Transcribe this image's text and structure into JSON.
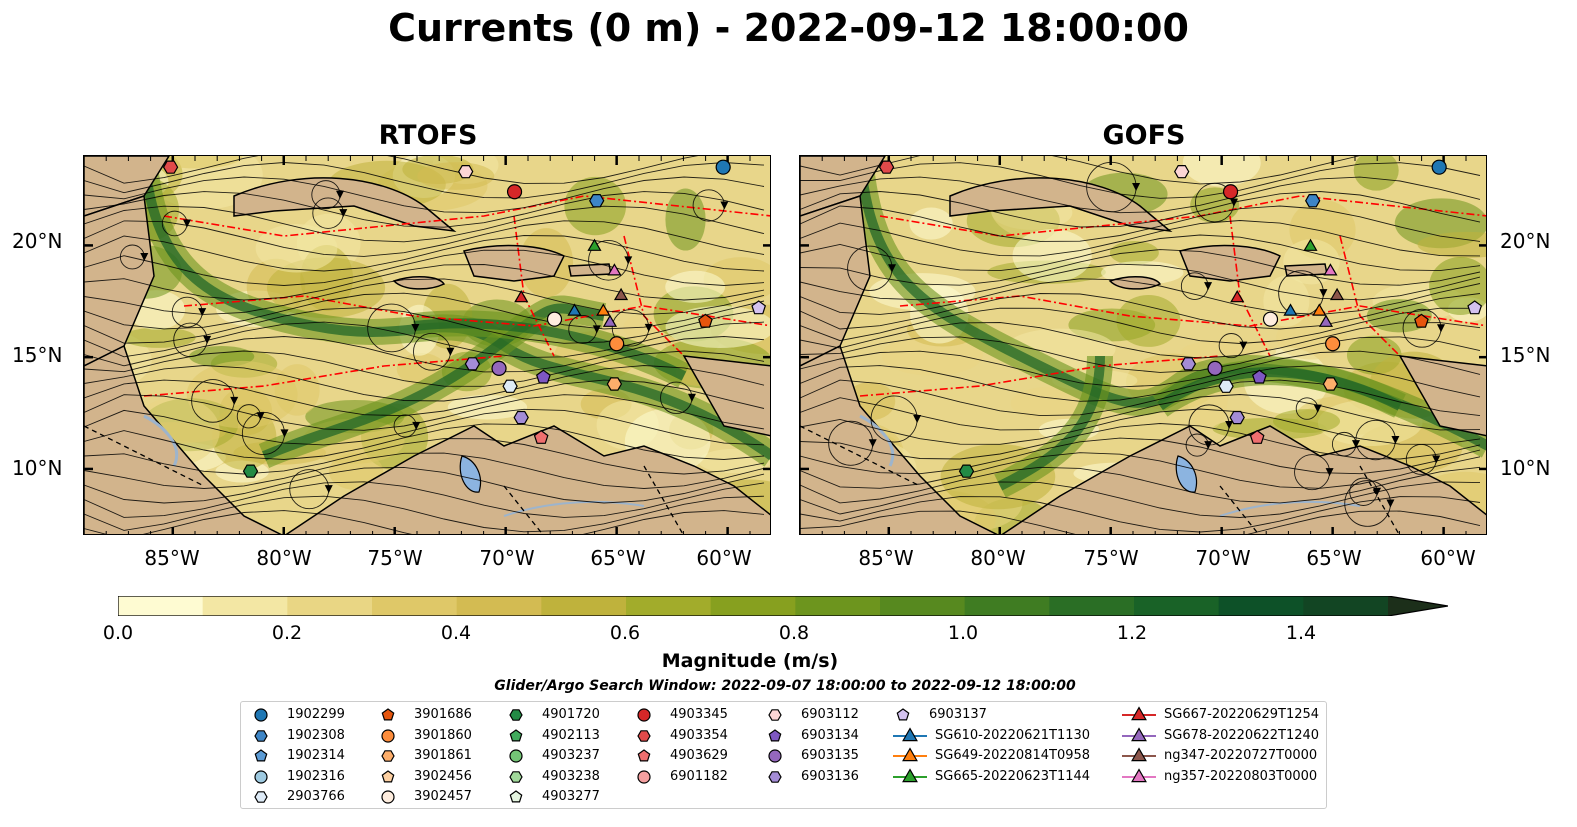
{
  "title": "Currents (0 m) - 2022-09-12 18:00:00",
  "panels": [
    {
      "title": "RTOFS"
    },
    {
      "title": "GOFS"
    }
  ],
  "lat_labels": [
    "20°N",
    "15°N",
    "10°N"
  ],
  "lon_labels": [
    "85°W",
    "80°W",
    "75°W",
    "70°W",
    "65°W",
    "60°W"
  ],
  "colorbar": {
    "label": "Magnitude (m/s)",
    "ticks": [
      "0.0",
      "0.2",
      "0.4",
      "0.6",
      "0.8",
      "1.0",
      "1.2",
      "1.4"
    ],
    "colors": [
      "#fefbd2",
      "#f3e7a4",
      "#e9d684",
      "#dfc868",
      "#d3bb52",
      "#bfb23c",
      "#a2ac2b",
      "#87a01f",
      "#6d951e",
      "#57891f",
      "#3f7c22",
      "#2a6e25",
      "#196227",
      "#0d5128",
      "#124523",
      "#173a1f",
      "#1c2f1a"
    ],
    "range": [
      0.0,
      1.6
    ]
  },
  "search_window": "Glider/Argo Search Window: 2022-09-07 18:00:00 to 2022-09-12 18:00:00",
  "legend": [
    {
      "label": "1902299",
      "marker": "circle",
      "color": "#1f77b4"
    },
    {
      "label": "1902308",
      "marker": "hexagon",
      "color": "#3d85c6"
    },
    {
      "label": "1902314",
      "marker": "pentagon",
      "color": "#5b9bd5"
    },
    {
      "label": "1902316",
      "marker": "circle",
      "color": "#9ecae1"
    },
    {
      "label": "2903766",
      "marker": "hexagon",
      "color": "#deebf7"
    },
    {
      "label": "3901686",
      "marker": "pentagon",
      "color": "#e6550d"
    },
    {
      "label": "3901860",
      "marker": "circle",
      "color": "#fd8d3c"
    },
    {
      "label": "3901861",
      "marker": "hexagon",
      "color": "#fdae6b"
    },
    {
      "label": "3902456",
      "marker": "pentagon",
      "color": "#fdd0a2"
    },
    {
      "label": "3902457",
      "marker": "circle",
      "color": "#feedde"
    },
    {
      "label": "4901720",
      "marker": "hexagon",
      "color": "#238b45"
    },
    {
      "label": "4902113",
      "marker": "pentagon",
      "color": "#41ab5d"
    },
    {
      "label": "4903237",
      "marker": "circle",
      "color": "#74c476"
    },
    {
      "label": "4903238",
      "marker": "hexagon",
      "color": "#a1d99b"
    },
    {
      "label": "4903277",
      "marker": "pentagon",
      "color": "#e5f5e0"
    },
    {
      "label": "4903345",
      "marker": "circle",
      "color": "#d62728"
    },
    {
      "label": "4903354",
      "marker": "hexagon",
      "color": "#e04a4a"
    },
    {
      "label": "4903629",
      "marker": "pentagon",
      "color": "#ef6f6f"
    },
    {
      "label": "6901182",
      "marker": "circle",
      "color": "#f4a0a0"
    },
    {
      "label": "6903112",
      "marker": "hexagon",
      "color": "#fcd5d5"
    },
    {
      "label": "6903134",
      "marker": "pentagon",
      "color": "#7e57c2"
    },
    {
      "label": "6903135",
      "marker": "circle",
      "color": "#9467bd"
    },
    {
      "label": "6903136",
      "marker": "hexagon",
      "color": "#a48cd6"
    },
    {
      "label": "6903137",
      "marker": "pentagon",
      "color": "#d4c2f0"
    },
    {
      "label": "SG610-20220621T1130",
      "marker": "triangle",
      "color": "#1f77b4"
    },
    {
      "label": "SG649-20220814T0958",
      "marker": "triangle",
      "color": "#ff7f0e"
    },
    {
      "label": "SG665-20220623T1144",
      "marker": "triangle",
      "color": "#2ca02c"
    },
    {
      "label": "SG667-20220629T1254",
      "marker": "triangle",
      "color": "#d62728"
    },
    {
      "label": "SG678-20220622T1240",
      "marker": "triangle",
      "color": "#9467bd"
    },
    {
      "label": "ng347-20220727T0000",
      "marker": "triangle",
      "color": "#8c564b"
    },
    {
      "label": "ng357-20220803T0000",
      "marker": "triangle",
      "color": "#e377c2"
    }
  ],
  "colors": {
    "land": "#d2b48c",
    "lake": "#8cb4e0",
    "eez_line": "#ff0000"
  }
}
